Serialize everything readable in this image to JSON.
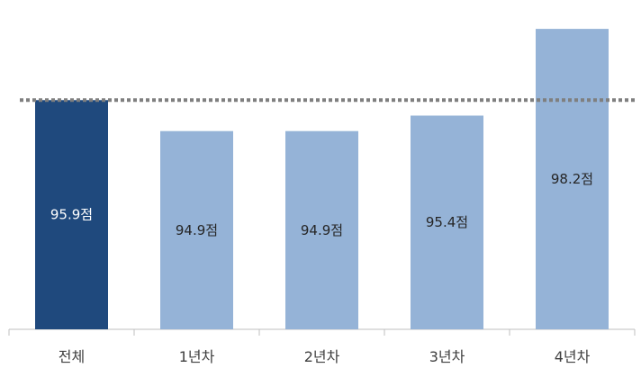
{
  "chart_data": {
    "type": "bar",
    "categories": [
      "전체",
      "1년차",
      "2년차",
      "3년차",
      "4년차"
    ],
    "values": [
      95.9,
      94.9,
      94.9,
      95.4,
      98.2
    ],
    "value_labels": [
      "95.9점",
      "94.9점",
      "94.9점",
      "95.4점",
      "98.2점"
    ],
    "title": "",
    "xlabel": "",
    "ylabel": "",
    "ylim": [
      88.5,
      98.9
    ],
    "reference_line": {
      "value": 95.9,
      "style": "dotted"
    },
    "grid": false,
    "legend": "none",
    "colors": {
      "highlight": "#1f497d",
      "bar": "#95b3d7",
      "highlight_label": "#ffffff",
      "bar_label": "#262626",
      "reference_line": "#7f7f7f",
      "axis": "#bfbfbf"
    }
  }
}
